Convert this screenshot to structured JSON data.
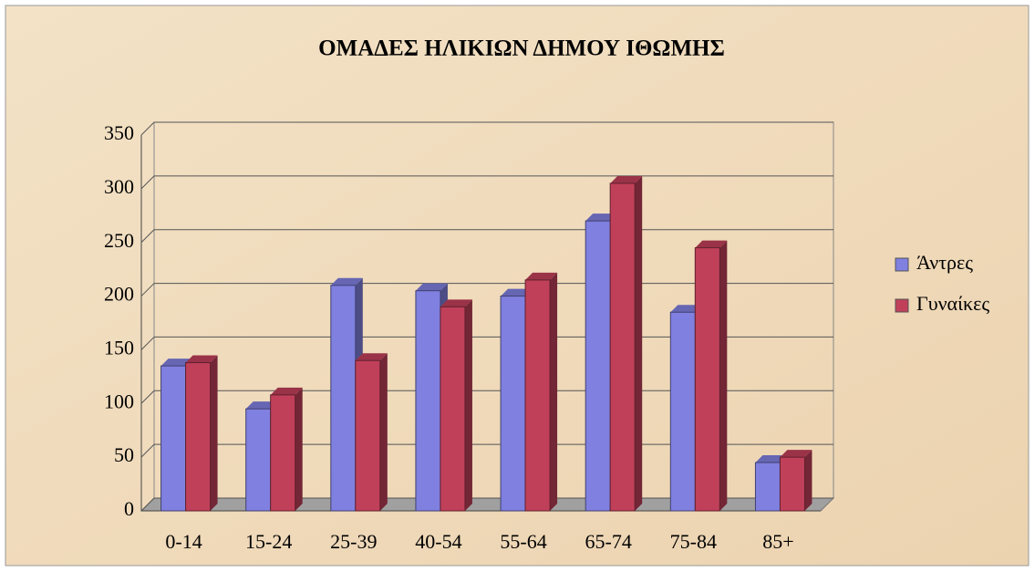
{
  "chart_data": {
    "type": "bar",
    "title": "ΟΜΑΔΕΣ ΗΛΙΚΙΩΝ ΔΗΜΟΥ ΙΘΩΜΗΣ",
    "categories": [
      "0-14",
      "15-24",
      "25-39",
      "40-54",
      "55-64",
      "65-74",
      "75-84",
      "85+"
    ],
    "series": [
      {
        "name": "Άντρες",
        "color": "#8080e0",
        "values": [
          135,
          95,
          210,
          205,
          200,
          270,
          185,
          45
        ]
      },
      {
        "name": "Γυναίκες",
        "color": "#c0405a",
        "values": [
          138,
          108,
          140,
          190,
          215,
          305,
          245,
          50
        ]
      }
    ],
    "ylim": [
      0,
      350
    ],
    "yticks": [
      0,
      50,
      100,
      150,
      200,
      250,
      300,
      350
    ],
    "grid": true,
    "legend": "right"
  }
}
